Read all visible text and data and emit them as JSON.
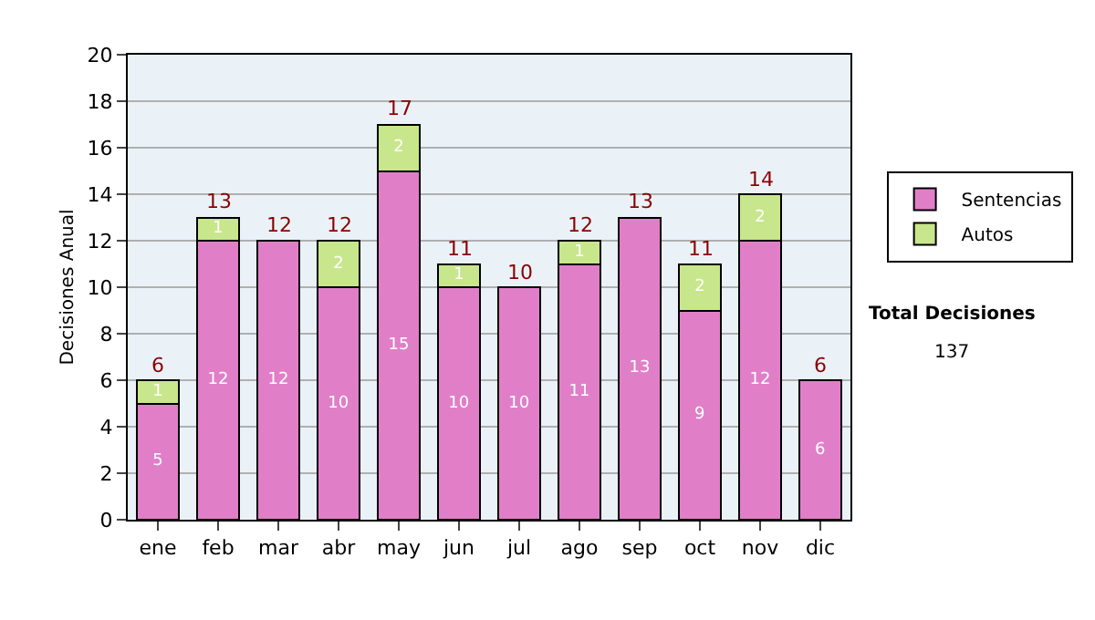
{
  "chart_data": {
    "type": "bar",
    "stacked": true,
    "ylabel": "Decisiones Anual",
    "categories": [
      "ene",
      "feb",
      "mar",
      "abr",
      "may",
      "jun",
      "jul",
      "ago",
      "sep",
      "oct",
      "nov",
      "dic"
    ],
    "series": [
      {
        "name": "Sentencias",
        "color": "#e07fc8",
        "values": [
          5,
          12,
          12,
          10,
          15,
          10,
          10,
          11,
          13,
          9,
          12,
          6
        ],
        "value_labels": [
          "5",
          "12",
          "12",
          "10",
          "15",
          "10",
          "10",
          "11",
          "13",
          "9",
          "12",
          "6"
        ]
      },
      {
        "name": "Autos",
        "color": "#c8e68c",
        "values": [
          1,
          1,
          0,
          2,
          2,
          1,
          0,
          1,
          0,
          2,
          2,
          0
        ],
        "value_labels": [
          "1",
          "1",
          null,
          "2",
          "2",
          "1",
          null,
          "1",
          null,
          "2",
          "2",
          null
        ]
      }
    ],
    "totals": [
      "6",
      "13",
      "12",
      "12",
      "17",
      "11",
      "10",
      "12",
      "13",
      "11",
      "14",
      "6"
    ],
    "ylim": [
      0,
      20
    ],
    "yticks": [
      0,
      2,
      4,
      6,
      8,
      10,
      12,
      14,
      16,
      18,
      20
    ],
    "grid": "y",
    "legend": "right",
    "annotations": [
      "Total Decisiones",
      "137"
    ]
  }
}
